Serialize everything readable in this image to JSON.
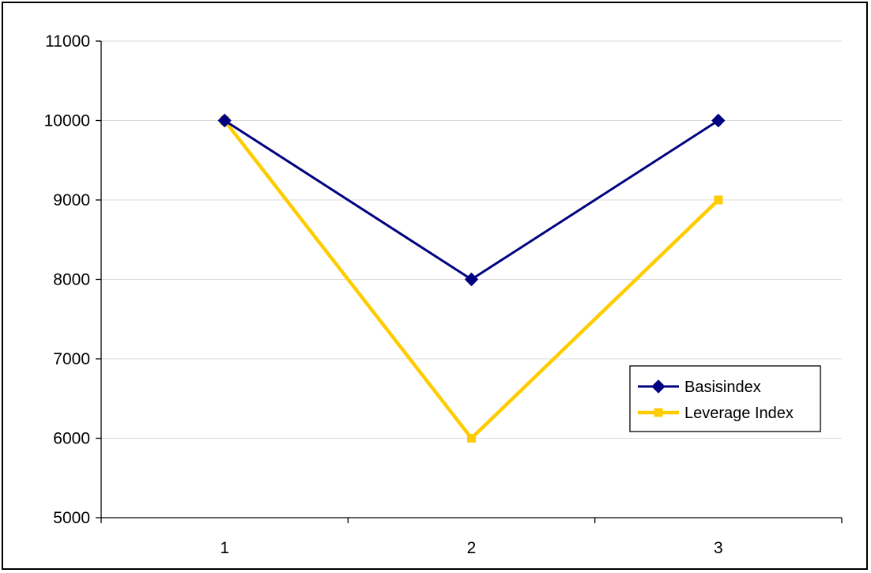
{
  "chart_data": {
    "type": "line",
    "x": [
      1,
      2,
      3
    ],
    "xticks": [
      "1",
      "2",
      "3"
    ],
    "ylim": [
      5000,
      11000
    ],
    "yticks": [
      5000,
      6000,
      7000,
      8000,
      9000,
      10000,
      11000
    ],
    "ytick_labels": [
      "5000",
      "6000",
      "7000",
      "8000",
      "9000",
      "10000",
      "11000"
    ],
    "grid": "horizontal",
    "legend_position": "right",
    "series": [
      {
        "name": "Basisindex",
        "values": [
          10000,
          8000,
          10000
        ],
        "color": "#000080",
        "marker": "diamond"
      },
      {
        "name": "Leverage Index",
        "values": [
          10000,
          6000,
          9000
        ],
        "color": "#FFCC00",
        "marker": "square"
      }
    ],
    "gridline_color": "#d9d9d9",
    "axis_color": "#000000"
  }
}
